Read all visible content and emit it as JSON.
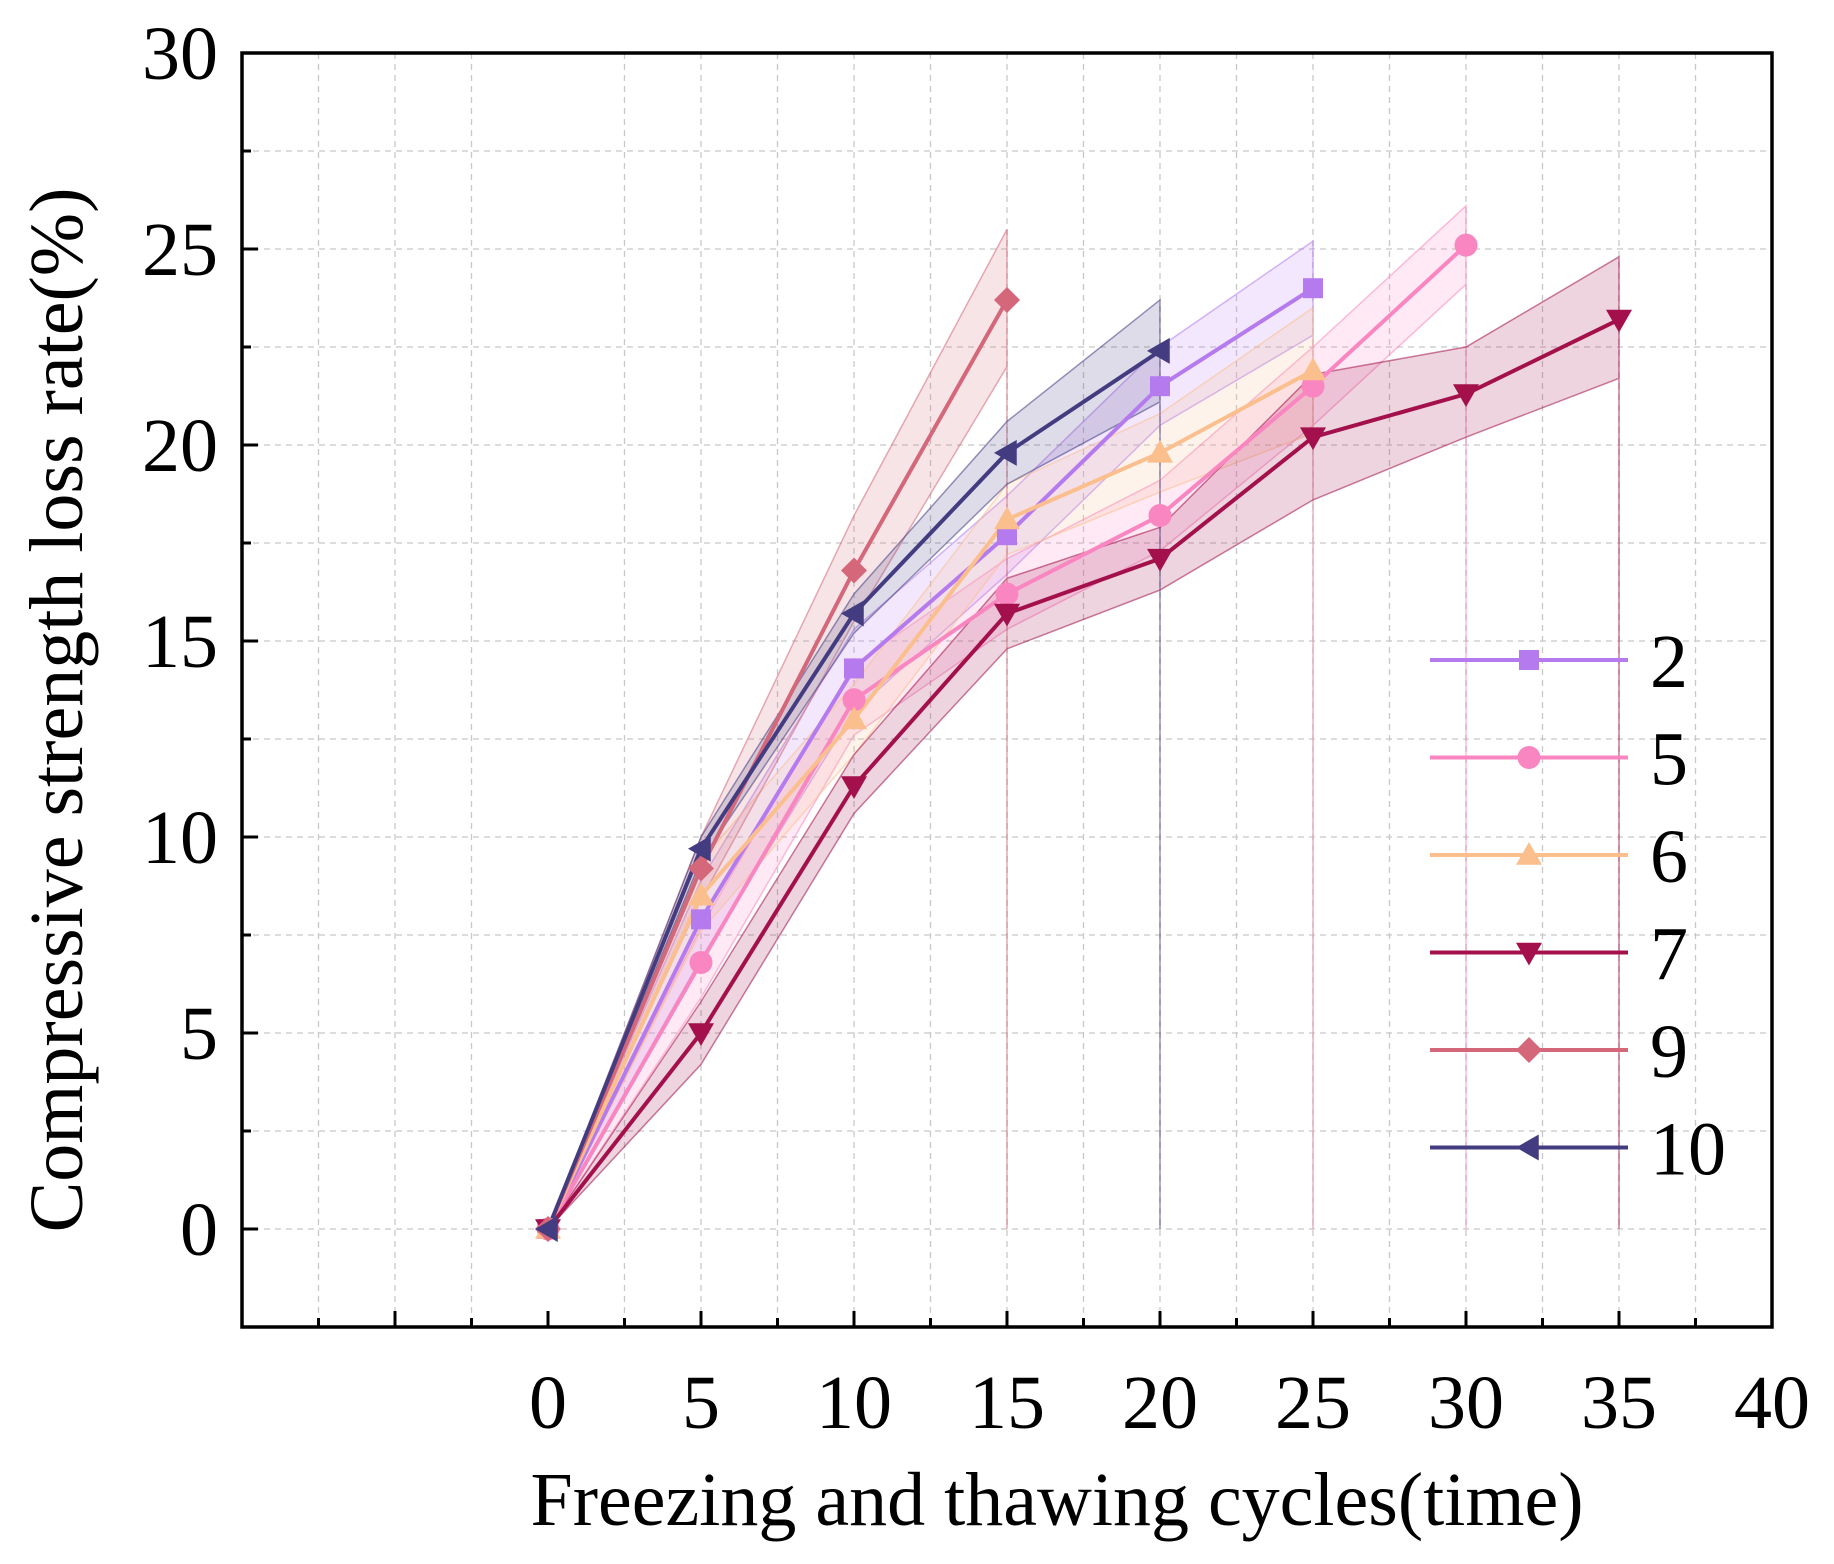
{
  "chart_data": {
    "type": "line",
    "title": "",
    "xlabel": "Freezing and thawing cycles(time)",
    "ylabel": "Compressive strength loss rate(%)",
    "xlim": [
      -10,
      40
    ],
    "ylim": [
      -2.5,
      30
    ],
    "xticks": [
      0,
      5,
      10,
      15,
      20,
      25,
      30,
      35,
      40
    ],
    "yticks": [
      0,
      5,
      10,
      15,
      20,
      25,
      30
    ],
    "grid": true,
    "legend_position": "lower-right",
    "series": [
      {
        "name": "2",
        "color": "#b57bee",
        "marker": "square",
        "x": [
          0,
          5,
          10,
          15,
          20,
          25
        ],
        "y": [
          0,
          7.9,
          14.3,
          17.7,
          21.5,
          24.0
        ],
        "upper": [
          0,
          8.9,
          15.3,
          18.7,
          22.5,
          25.2
        ],
        "lower": [
          0,
          6.9,
          13.2,
          16.7,
          20.5,
          22.8
        ]
      },
      {
        "name": "5",
        "color": "#f986c0",
        "marker": "circle",
        "x": [
          0,
          5,
          10,
          15,
          20,
          25,
          30
        ],
        "y": [
          0,
          6.8,
          13.5,
          16.2,
          18.2,
          21.5,
          25.1
        ],
        "upper": [
          0,
          7.7,
          14.4,
          17.1,
          19.1,
          22.5,
          26.1
        ],
        "lower": [
          0,
          5.9,
          12.6,
          15.3,
          17.3,
          20.5,
          24.1
        ]
      },
      {
        "name": "6",
        "color": "#fbbf8e",
        "marker": "triangle-up",
        "x": [
          0,
          5,
          10,
          15,
          20,
          25
        ],
        "y": [
          0,
          8.5,
          13.0,
          18.1,
          19.8,
          21.9
        ],
        "upper": [
          0,
          9.4,
          13.9,
          19.0,
          20.8,
          23.5
        ],
        "lower": [
          0,
          7.6,
          12.1,
          17.2,
          18.8,
          20.3
        ]
      },
      {
        "name": "7",
        "color": "#a3104b",
        "marker": "triangle-down",
        "x": [
          0,
          5,
          10,
          15,
          20,
          25,
          30,
          35
        ],
        "y": [
          0,
          5.0,
          11.3,
          15.7,
          17.1,
          20.2,
          21.3,
          23.2
        ],
        "upper": [
          0,
          5.8,
          12.1,
          16.6,
          17.9,
          21.8,
          22.5,
          24.8
        ],
        "lower": [
          0,
          4.2,
          10.6,
          14.8,
          16.3,
          18.6,
          20.2,
          21.7
        ]
      },
      {
        "name": "9",
        "color": "#d4677a",
        "marker": "diamond",
        "x": [
          0,
          5,
          10,
          15
        ],
        "y": [
          0,
          9.2,
          16.8,
          23.7
        ],
        "upper": [
          0,
          10.0,
          18.2,
          25.5
        ],
        "lower": [
          0,
          8.4,
          15.5,
          22.0
        ]
      },
      {
        "name": "10",
        "color": "#433c81",
        "marker": "triangle-left",
        "x": [
          0,
          5,
          10,
          15,
          20
        ],
        "y": [
          0,
          9.7,
          15.7,
          19.8,
          22.4
        ],
        "upper": [
          0,
          10.0,
          16.2,
          20.6,
          23.7
        ],
        "lower": [
          0,
          9.4,
          15.2,
          19.0,
          21.1
        ]
      }
    ]
  }
}
